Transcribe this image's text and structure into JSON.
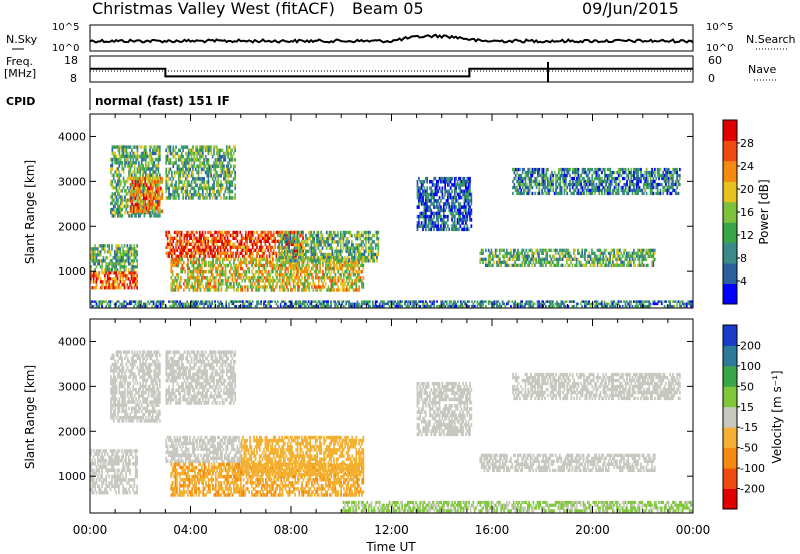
{
  "header": {
    "station": "Christmas Valley West (fitACF)",
    "beam": "Beam 05",
    "date": "09/Jun/2015"
  },
  "noise_panel": {
    "left_label": "N.Sky",
    "right_label": "N.Search",
    "left_ticks": [
      "10^5",
      "10^0"
    ],
    "right_ticks": [
      "10^5",
      "10^0"
    ]
  },
  "freq_panel": {
    "left_label": "Freq.",
    "left_unit": "[MHz]",
    "right_label": "Nave",
    "left_ticks": [
      "18",
      "8"
    ],
    "right_ticks": [
      "60",
      "0"
    ],
    "freq_segments": [
      {
        "start_h": 0,
        "end_h": 3.0,
        "freq": 14.6
      },
      {
        "start_h": 3.0,
        "end_h": 15.1,
        "freq": 10.8
      },
      {
        "start_h": 15.1,
        "end_h": 18.2,
        "freq": 14.6
      },
      {
        "start_h": 18.2,
        "end_h": 24,
        "freq": 14.6
      }
    ]
  },
  "cpid_panel": {
    "label": "CPID",
    "text": "normal (fast) 151 IF"
  },
  "chart_data": [
    {
      "type": "heatmap",
      "name": "power",
      "xlabel": "Time UT",
      "ylabel": "Slant Range [km]",
      "x_ticks": [
        "00:00",
        "04:00",
        "08:00",
        "12:00",
        "16:00",
        "20:00",
        "00:00"
      ],
      "xlim_hours": [
        0,
        24
      ],
      "y_ticks": [
        "1000",
        "2000",
        "3000",
        "4000"
      ],
      "ylim": [
        180,
        4500
      ],
      "colorbar_label": "Power [dB]",
      "colorbar_ticks": [
        "28",
        "24",
        "20",
        "16",
        "12",
        "8",
        "4"
      ],
      "colorbar_range": [
        0,
        30
      ],
      "colors": [
        "#0000ff",
        "#2c5fa0",
        "#3a8a8a",
        "#3aa64a",
        "#7cc23a",
        "#e8c21e",
        "#f48a10",
        "#f04a10",
        "#e00000"
      ],
      "regions": [
        {
          "t0": 0.0,
          "t1": 1.9,
          "r0": 600,
          "r1": 1000,
          "level": 24
        },
        {
          "t0": 0.0,
          "t1": 1.9,
          "r0": 1000,
          "r1": 1600,
          "level": 12
        },
        {
          "t0": 0.8,
          "t1": 2.8,
          "r0": 2200,
          "r1": 3800,
          "level": 12
        },
        {
          "t0": 1.6,
          "t1": 2.9,
          "r0": 2300,
          "r1": 3100,
          "level": 22
        },
        {
          "t0": 3.0,
          "t1": 5.8,
          "r0": 2600,
          "r1": 3800,
          "level": 12
        },
        {
          "t0": 3.0,
          "t1": 8.5,
          "r0": 1300,
          "r1": 1900,
          "level": 26
        },
        {
          "t0": 3.2,
          "t1": 10.9,
          "r0": 550,
          "r1": 1300,
          "level": 18
        },
        {
          "t0": 7.5,
          "t1": 11.5,
          "r0": 1200,
          "r1": 1900,
          "level": 12
        },
        {
          "t0": 13.0,
          "t1": 15.2,
          "r0": 1900,
          "r1": 3100,
          "level": 6
        },
        {
          "t0": 15.5,
          "t1": 22.5,
          "r0": 1100,
          "r1": 1500,
          "level": 12
        },
        {
          "t0": 16.8,
          "t1": 23.5,
          "r0": 2700,
          "r1": 3300,
          "level": 8
        },
        {
          "t0": 0.0,
          "t1": 24.0,
          "r0": 200,
          "r1": 350,
          "level": 8
        }
      ]
    },
    {
      "type": "heatmap",
      "name": "velocity",
      "xlabel": "Time UT",
      "ylabel": "Slant Range [km]",
      "x_ticks": [
        "00:00",
        "04:00",
        "08:00",
        "12:00",
        "16:00",
        "20:00",
        "00:00"
      ],
      "xlim_hours": [
        0,
        24
      ],
      "y_ticks": [
        "1000",
        "2000",
        "3000",
        "4000"
      ],
      "ylim": [
        180,
        4500
      ],
      "colorbar_label": "Velocity [m s⁻¹]",
      "colorbar_ticks": [
        "200",
        "100",
        "50",
        "15",
        "-15",
        "-50",
        "-100",
        "-200"
      ],
      "colorbar_range": [
        -250,
        250
      ],
      "colors": [
        "#e00000",
        "#f04a10",
        "#f48a10",
        "#f4b030",
        "#c8c8c0",
        "#7ec83a",
        "#3aa64a",
        "#2c7a9a",
        "#1a3cc8"
      ],
      "regions": [
        {
          "t0": 0.0,
          "t1": 1.9,
          "r0": 600,
          "r1": 1600,
          "level": 0
        },
        {
          "t0": 0.8,
          "t1": 2.8,
          "r0": 2200,
          "r1": 3800,
          "level": 0
        },
        {
          "t0": 3.0,
          "t1": 5.8,
          "r0": 2600,
          "r1": 3800,
          "level": 0
        },
        {
          "t0": 3.0,
          "t1": 6.0,
          "r0": 1300,
          "r1": 1900,
          "level": 0
        },
        {
          "t0": 3.2,
          "t1": 10.9,
          "r0": 550,
          "r1": 1300,
          "level": -80
        },
        {
          "t0": 6.0,
          "t1": 10.9,
          "r0": 1000,
          "r1": 1900,
          "level": -70
        },
        {
          "t0": 13.0,
          "t1": 15.2,
          "r0": 1900,
          "r1": 3100,
          "level": 0
        },
        {
          "t0": 15.5,
          "t1": 22.5,
          "r0": 1100,
          "r1": 1500,
          "level": 0
        },
        {
          "t0": 16.8,
          "t1": 23.5,
          "r0": 2700,
          "r1": 3300,
          "level": 0
        },
        {
          "t0": 10.0,
          "t1": 24.0,
          "r0": 200,
          "r1": 450,
          "level": 30
        }
      ]
    }
  ]
}
